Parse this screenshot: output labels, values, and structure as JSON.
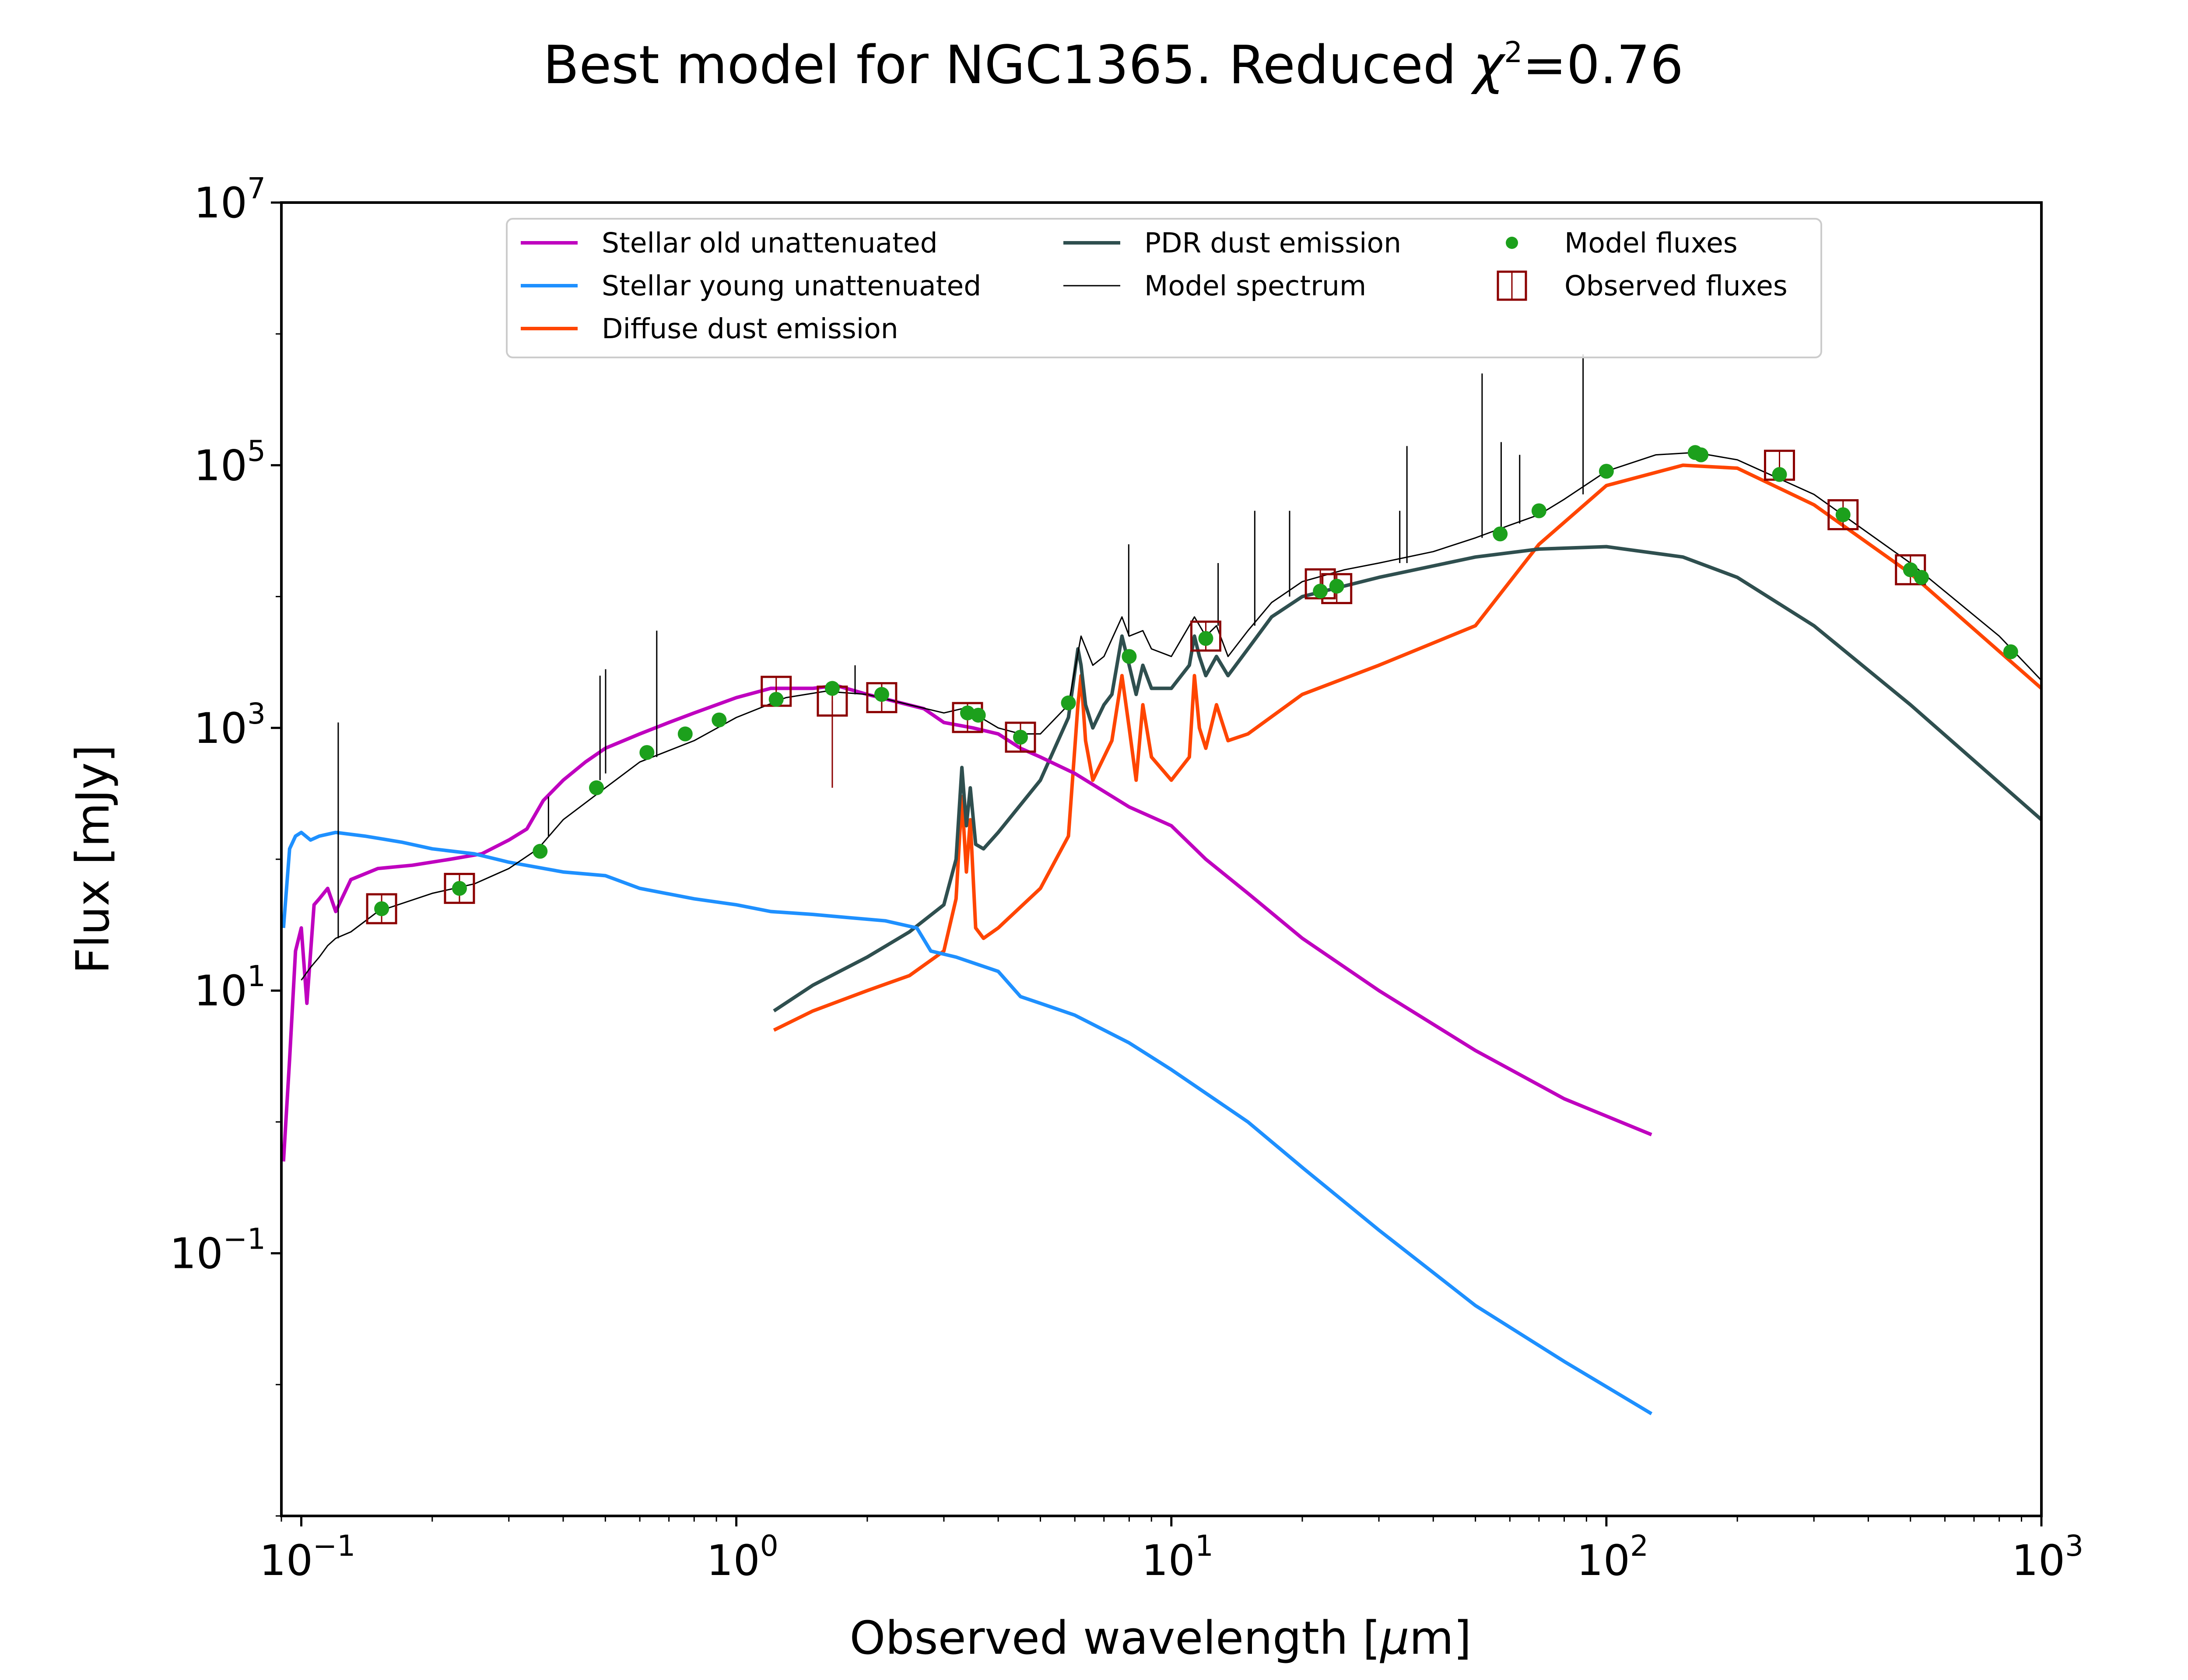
{
  "chart_data": {
    "type": "line",
    "title": {
      "main": "Best model for NGC1365. Reduced ",
      "chi": "χ",
      "chi_sup": "2",
      "value": "=0.76"
    },
    "xlabel": {
      "main": "Observed wavelength [",
      "mu": "μ",
      "unit": "m]"
    },
    "ylabel": "Flux [mJy]",
    "xscale": "log",
    "yscale": "log",
    "xlim": [
      0.09,
      1000
    ],
    "ylim": [
      0.001,
      10000000
    ],
    "xticks": [
      {
        "value": 0.1,
        "base": "10",
        "exp": "−1"
      },
      {
        "value": 1,
        "base": "10",
        "exp": "0"
      },
      {
        "value": 10,
        "base": "10",
        "exp": "1"
      },
      {
        "value": 100,
        "base": "10",
        "exp": "2"
      },
      {
        "value": 1000,
        "base": "10",
        "exp": "3"
      }
    ],
    "yticks": [
      {
        "value": 0.1,
        "base": "10",
        "exp": "−1"
      },
      {
        "value": 10,
        "base": "10",
        "exp": "1"
      },
      {
        "value": 1000,
        "base": "10",
        "exp": "3"
      },
      {
        "value": 100000,
        "base": "10",
        "exp": "5"
      },
      {
        "value": 10000000,
        "base": "10",
        "exp": "7"
      }
    ],
    "grid": false,
    "legend_position": "top-center",
    "legend": [
      {
        "label": "Stellar old unattenuated",
        "kind": "line",
        "color": "#bf00bf"
      },
      {
        "label": "Stellar young unattenuated",
        "kind": "line",
        "color": "#1e90ff"
      },
      {
        "label": "Diffuse dust emission",
        "kind": "line",
        "color": "#ff4500"
      },
      {
        "label": "PDR dust emission",
        "kind": "line",
        "color": "#2f4f4f"
      },
      {
        "label": "Model spectrum",
        "kind": "thinline",
        "color": "#000000"
      },
      {
        "label": "Model fluxes",
        "kind": "dot",
        "color": "#1ca01c"
      },
      {
        "label": "Observed fluxes",
        "kind": "square",
        "color": "#8b0000"
      }
    ],
    "series": [
      {
        "name": "Stellar old unattenuated",
        "color": "#bf00bf",
        "width": 8,
        "x": [
          0.091,
          0.094,
          0.097,
          0.1,
          0.103,
          0.107,
          0.11,
          0.115,
          0.12,
          0.13,
          0.15,
          0.18,
          0.22,
          0.26,
          0.3,
          0.33,
          0.36,
          0.4,
          0.45,
          0.5,
          0.6,
          0.7,
          0.8,
          1.0,
          1.2,
          1.5,
          1.7,
          2.0,
          2.3,
          2.7,
          3.0,
          3.5,
          4.0,
          4.5,
          5.0,
          6.0,
          8.0,
          10,
          12,
          15,
          20,
          30,
          50,
          80,
          127
        ],
        "y": [
          0.5,
          3,
          20,
          30,
          8,
          45,
          50,
          60,
          40,
          70,
          85,
          90,
          100,
          110,
          140,
          170,
          280,
          400,
          550,
          700,
          900,
          1100,
          1300,
          1700,
          2000,
          2000,
          2100,
          1800,
          1600,
          1400,
          1100,
          1000,
          900,
          700,
          600,
          450,
          250,
          180,
          100,
          55,
          25,
          10,
          3.5,
          1.5,
          0.8
        ]
      },
      {
        "name": "Stellar young unattenuated",
        "color": "#1e90ff",
        "width": 8,
        "x": [
          0.091,
          0.094,
          0.097,
          0.1,
          0.105,
          0.11,
          0.12,
          0.14,
          0.17,
          0.2,
          0.25,
          0.3,
          0.4,
          0.5,
          0.6,
          0.8,
          1.0,
          1.2,
          1.5,
          1.8,
          2.2,
          2.6,
          2.8,
          3.2,
          4.0,
          4.5,
          5.0,
          6.0,
          8.0,
          10,
          15,
          20,
          30,
          50,
          80,
          127
        ],
        "y": [
          30,
          120,
          150,
          160,
          140,
          150,
          160,
          150,
          135,
          120,
          110,
          95,
          80,
          75,
          60,
          50,
          45,
          40,
          38,
          36,
          34,
          30,
          20,
          18,
          14,
          9,
          8,
          6.5,
          4,
          2.5,
          1.0,
          0.45,
          0.15,
          0.04,
          0.015,
          0.006
        ]
      },
      {
        "name": "Diffuse dust emission",
        "color": "#ff4500",
        "width": 8,
        "x": [
          1.22,
          1.5,
          2.0,
          2.5,
          3.0,
          3.2,
          3.3,
          3.38,
          3.45,
          3.55,
          3.7,
          4.0,
          5.0,
          5.8,
          6.1,
          6.2,
          6.35,
          6.6,
          7.0,
          7.3,
          7.7,
          8.0,
          8.3,
          8.6,
          9.0,
          10.0,
          11.0,
          11.3,
          11.6,
          12.0,
          12.7,
          13.5,
          15,
          20,
          30,
          50,
          70,
          100,
          150,
          200,
          300,
          500,
          1000
        ],
        "y": [
          5,
          7,
          10,
          13,
          20,
          50,
          300,
          80,
          200,
          30,
          25,
          30,
          60,
          150,
          1500,
          2500,
          800,
          400,
          600,
          800,
          2500,
          1000,
          400,
          1500,
          600,
          400,
          600,
          2500,
          1000,
          700,
          1500,
          800,
          900,
          1800,
          3000,
          6000,
          25000,
          70000,
          100000,
          95000,
          50000,
          15000,
          2000
        ]
      },
      {
        "name": "PDR dust emission",
        "color": "#2f4f4f",
        "width": 8,
        "x": [
          1.22,
          1.5,
          2.0,
          2.5,
          3.0,
          3.2,
          3.3,
          3.38,
          3.45,
          3.55,
          3.7,
          4.0,
          5.0,
          5.8,
          6.1,
          6.2,
          6.35,
          6.6,
          7.0,
          7.3,
          7.7,
          8.0,
          8.3,
          8.6,
          9.0,
          10.0,
          11.0,
          11.3,
          11.6,
          12.0,
          12.7,
          13.5,
          15,
          17,
          20,
          30,
          50,
          70,
          100,
          150,
          200,
          300,
          500,
          1000
        ],
        "y": [
          7,
          11,
          18,
          28,
          45,
          100,
          500,
          180,
          350,
          130,
          120,
          160,
          400,
          1200,
          4000,
          3000,
          1500,
          1000,
          1500,
          1800,
          5000,
          3000,
          1800,
          3000,
          2000,
          2000,
          3000,
          5000,
          3500,
          2500,
          3500,
          2500,
          4000,
          7000,
          10000,
          14000,
          20000,
          23000,
          24000,
          20000,
          14000,
          6000,
          1500,
          200
        ]
      },
      {
        "name": "Model spectrum",
        "color": "#000000",
        "width": 3,
        "x": [
          0.1,
          0.105,
          0.11,
          0.115,
          0.12,
          0.13,
          0.15,
          0.2,
          0.25,
          0.3,
          0.35,
          0.4,
          0.5,
          0.6,
          0.8,
          1.0,
          1.3,
          1.6,
          2.0,
          2.5,
          3.0,
          3.3,
          3.4,
          3.5,
          4.0,
          4.5,
          5.0,
          5.8,
          6.2,
          6.6,
          7.0,
          7.7,
          8.0,
          8.6,
          9.0,
          10,
          11.3,
          12,
          12.7,
          13.5,
          15,
          17,
          20,
          25,
          30,
          40,
          50,
          60,
          70,
          80,
          100,
          130,
          160,
          200,
          300,
          500,
          800,
          1000
        ],
        "y": [
          12,
          15,
          18,
          22,
          25,
          28,
          40,
          55,
          65,
          85,
          120,
          200,
          350,
          550,
          800,
          1200,
          1700,
          1900,
          1800,
          1500,
          1300,
          1400,
          1300,
          1300,
          1000,
          900,
          900,
          1500,
          5000,
          3000,
          3500,
          7000,
          5000,
          5500,
          4000,
          3500,
          7000,
          5000,
          6000,
          3500,
          5500,
          9000,
          13000,
          16000,
          18000,
          22000,
          28000,
          35000,
          42000,
          55000,
          90000,
          120000,
          125000,
          110000,
          60000,
          18000,
          5000,
          2300
        ]
      }
    ],
    "spikes": [
      {
        "x": 0.1216,
        "ybase": 25,
        "ytop": 1100
      },
      {
        "x": 0.37,
        "ybase": 150,
        "ytop": 300
      },
      {
        "x": 0.4861,
        "ybase": 400,
        "ytop": 2500
      },
      {
        "x": 0.5007,
        "ybase": 450,
        "ytop": 2800
      },
      {
        "x": 0.6563,
        "ybase": 600,
        "ytop": 5500
      },
      {
        "x": 1.875,
        "ybase": 1800,
        "ytop": 3000
      },
      {
        "x": 7.98,
        "ybase": 5000,
        "ytop": 25000
      },
      {
        "x": 12.81,
        "ybase": 6000,
        "ytop": 18000
      },
      {
        "x": 15.55,
        "ybase": 6000,
        "ytop": 45000
      },
      {
        "x": 18.7,
        "ybase": 10000,
        "ytop": 45000
      },
      {
        "x": 33.5,
        "ybase": 18000,
        "ytop": 45000
      },
      {
        "x": 34.8,
        "ybase": 18000,
        "ytop": 140000
      },
      {
        "x": 51.8,
        "ybase": 28000,
        "ytop": 500000
      },
      {
        "x": 57.3,
        "ybase": 32000,
        "ytop": 150000
      },
      {
        "x": 63.2,
        "ybase": 36000,
        "ytop": 120000
      },
      {
        "x": 88.4,
        "ybase": 60000,
        "ytop": 700000
      }
    ],
    "model_fluxes": {
      "x": [
        0.153,
        0.231,
        0.354,
        0.477,
        0.623,
        0.763,
        0.913,
        1.235,
        1.662,
        2.159,
        3.4,
        3.6,
        4.5,
        5.8,
        8.0,
        12,
        22,
        24,
        57,
        70,
        100,
        160,
        165,
        250,
        350,
        500,
        530,
        850
      ],
      "y": [
        42,
        60,
        115,
        350,
        650,
        900,
        1150,
        1650,
        2000,
        1800,
        1300,
        1250,
        850,
        1550,
        3500,
        4800,
        11000,
        12000,
        30000,
        45000,
        90000,
        125000,
        120000,
        85000,
        42000,
        16000,
        14000,
        3800
      ]
    },
    "observed_fluxes": {
      "x": [
        0.153,
        0.231,
        1.235,
        1.662,
        2.159,
        3.4,
        4.5,
        12,
        22,
        24,
        250,
        350,
        500
      ],
      "y": [
        42,
        60,
        1900,
        1600,
        1700,
        1200,
        850,
        5000,
        12500,
        11500,
        100000,
        42000,
        16000
      ],
      "err_low": [
        null,
        null,
        null,
        350,
        null,
        null,
        null,
        null,
        null,
        null,
        null,
        null,
        null
      ]
    }
  }
}
